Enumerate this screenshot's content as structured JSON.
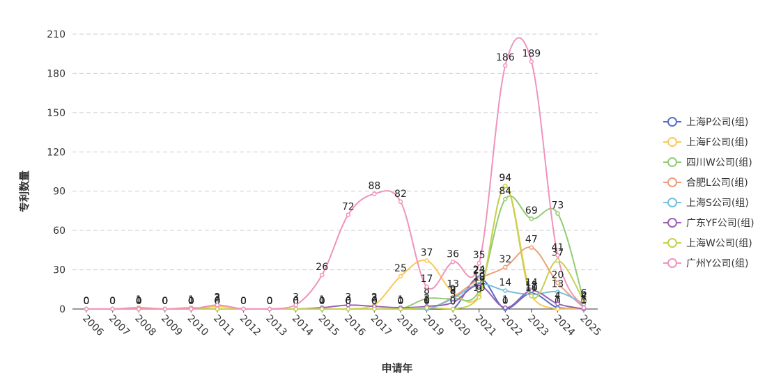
{
  "chart_data": {
    "type": "line",
    "title": "",
    "xlabel": "申请年",
    "ylabel": "专利数量",
    "ylim": [
      0,
      210
    ],
    "yticks": [
      0,
      30,
      60,
      90,
      120,
      150,
      180,
      210
    ],
    "grid": true,
    "legend_position": "right",
    "categories": [
      "2006",
      "2007",
      "2008",
      "2009",
      "2010",
      "2011",
      "2012",
      "2013",
      "2014",
      "2015",
      "2016",
      "2017",
      "2018",
      "2019",
      "2020",
      "2021",
      "2022",
      "2023",
      "2024",
      "2025"
    ],
    "series": [
      {
        "name": "上海P公司(组)",
        "color": "#5470c6",
        "values": [
          0,
          0,
          0,
          0,
          0,
          0,
          0,
          0,
          0,
          0,
          0,
          0,
          0,
          0,
          0,
          24,
          0,
          12,
          1,
          0
        ]
      },
      {
        "name": "上海F公司(组)",
        "color": "#fac858",
        "values": [
          0,
          0,
          1,
          0,
          0,
          2,
          0,
          0,
          0,
          0,
          0,
          3,
          25,
          37,
          13,
          10,
          94,
          10,
          0,
          0
        ]
      },
      {
        "name": "四川W公司(组)",
        "color": "#91cc75",
        "values": [
          0,
          0,
          0,
          0,
          0,
          0,
          0,
          0,
          0,
          0,
          0,
          0,
          0,
          8,
          8,
          14,
          84,
          69,
          73,
          6
        ]
      },
      {
        "name": "合肥L公司(组)",
        "color": "#ee9e7a",
        "values": [
          0,
          0,
          1,
          0,
          1,
          0,
          0,
          0,
          0,
          0,
          0,
          0,
          0,
          0,
          9,
          23,
          32,
          47,
          20,
          1
        ]
      },
      {
        "name": "上海S公司(组)",
        "color": "#73c0de",
        "values": [
          0,
          0,
          0,
          0,
          0,
          0,
          0,
          0,
          0,
          0,
          0,
          0,
          0,
          0,
          8,
          19,
          14,
          11,
          13,
          4
        ]
      },
      {
        "name": "广东YF公司(组)",
        "color": "#9a60b4",
        "values": [
          0,
          0,
          0,
          0,
          0,
          0,
          0,
          0,
          0,
          1,
          3,
          2,
          1,
          2,
          5,
          18,
          1,
          14,
          4,
          0
        ]
      },
      {
        "name": "上海W公司(组)",
        "color": "#c5d14e",
        "values": [
          0,
          0,
          0,
          0,
          0,
          0,
          0,
          0,
          0,
          0,
          0,
          0,
          0,
          1,
          0,
          9,
          94,
          10,
          37,
          6
        ]
      },
      {
        "name": "广州Y公司(组)",
        "color": "#f093bc",
        "values": [
          0,
          0,
          0,
          0,
          0,
          3,
          0,
          0,
          3,
          26,
          72,
          88,
          82,
          17,
          36,
          35,
          186,
          189,
          41,
          1
        ]
      }
    ]
  }
}
